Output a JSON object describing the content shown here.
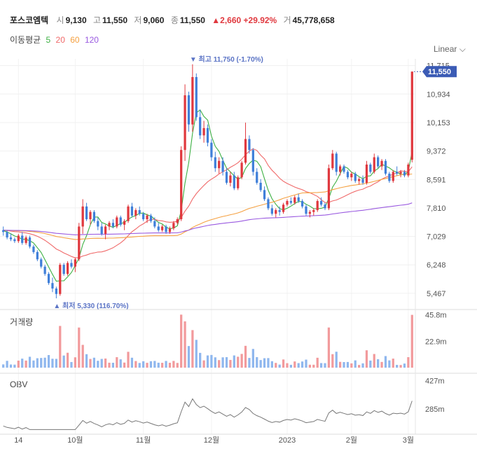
{
  "header": {
    "name": "포스코엠텍",
    "open_label": "시",
    "open": "9,130",
    "high_label": "고",
    "high": "11,550",
    "low_label": "저",
    "low": "9,060",
    "close_label": "종",
    "close": "11,550",
    "change": "▲2,660",
    "change_pct": "+29.92%",
    "volume_label": "거",
    "volume": "45,778,658"
  },
  "ma_legend": {
    "label": "이동평균",
    "items": [
      {
        "label": "5",
        "color": "#3cb043"
      },
      {
        "label": "20",
        "color": "#f06a6a"
      },
      {
        "label": "60",
        "color": "#f5a040"
      },
      {
        "label": "120",
        "color": "#9a5ae0"
      }
    ]
  },
  "scale_toggle": "Linear",
  "volume_title": "거래량",
  "obv_title": "OBV",
  "colors": {
    "up": "#e0383e",
    "down": "#3f7fd9",
    "current": "#3b5bb5"
  },
  "chart_data": [
    {
      "type": "candlestick",
      "price_ticks": [
        "11,715",
        "10,934",
        "10,153",
        "9,372",
        "8,591",
        "7,810",
        "7,029",
        "6,248",
        "5,467"
      ],
      "ylim": [
        5100,
        11900
      ],
      "current_price": "11,550",
      "annotations": {
        "high": "최고 11,750 (-1.70%)",
        "low": "최저 5,330 (116.70%)"
      },
      "x_labels": [
        "14",
        "10월",
        "11월",
        "12월",
        "2023",
        "2월",
        "3월"
      ],
      "candles": [
        [
          7200,
          7300,
          7050,
          7150
        ],
        [
          7150,
          7200,
          6950,
          7000
        ],
        [
          7000,
          7100,
          6900,
          6950
        ],
        [
          6950,
          7000,
          6850,
          6900
        ],
        [
          6900,
          7100,
          6850,
          7050
        ],
        [
          7050,
          7150,
          6800,
          6850
        ],
        [
          6850,
          7050,
          6800,
          7000
        ],
        [
          7000,
          7050,
          6700,
          6750
        ],
        [
          6750,
          6800,
          6550,
          6600
        ],
        [
          6600,
          6650,
          6350,
          6400
        ],
        [
          6400,
          6450,
          6150,
          6200
        ],
        [
          6200,
          6250,
          5950,
          6000
        ],
        [
          6000,
          6050,
          5700,
          5750
        ],
        [
          5750,
          5900,
          5500,
          5600
        ],
        [
          5600,
          5650,
          5330,
          5450
        ],
        [
          5450,
          6300,
          5400,
          6250
        ],
        [
          6250,
          6300,
          5950,
          6000
        ],
        [
          6000,
          6350,
          5950,
          6300
        ],
        [
          6300,
          6400,
          6150,
          6200
        ],
        [
          6200,
          6450,
          6050,
          6400
        ],
        [
          6400,
          7400,
          6350,
          7300
        ],
        [
          7300,
          8050,
          7100,
          7850
        ],
        [
          7850,
          7950,
          7450,
          7500
        ],
        [
          7500,
          7750,
          7350,
          7700
        ],
        [
          7700,
          7750,
          7400,
          7450
        ],
        [
          7450,
          7550,
          7200,
          7300
        ],
        [
          7300,
          7400,
          7050,
          7100
        ],
        [
          7100,
          7350,
          6950,
          7300
        ],
        [
          7300,
          7450,
          7200,
          7400
        ],
        [
          7400,
          7500,
          7250,
          7300
        ],
        [
          7300,
          7600,
          7250,
          7550
        ],
        [
          7550,
          7600,
          7300,
          7350
        ],
        [
          7350,
          7500,
          7200,
          7450
        ],
        [
          7450,
          7900,
          7400,
          7850
        ],
        [
          7850,
          7950,
          7550,
          7600
        ],
        [
          7600,
          7800,
          7500,
          7750
        ],
        [
          7750,
          7850,
          7600,
          7650
        ],
        [
          7650,
          7700,
          7450,
          7500
        ],
        [
          7500,
          7650,
          7400,
          7600
        ],
        [
          7600,
          7650,
          7400,
          7450
        ],
        [
          7450,
          7550,
          7250,
          7300
        ],
        [
          7300,
          7400,
          7150,
          7200
        ],
        [
          7200,
          7350,
          7150,
          7300
        ],
        [
          7300,
          7350,
          7100,
          7150
        ],
        [
          7150,
          7300,
          7100,
          7250
        ],
        [
          7250,
          7450,
          7200,
          7400
        ],
        [
          7400,
          7550,
          7350,
          7500
        ],
        [
          7500,
          9500,
          7450,
          9400
        ],
        [
          9400,
          11200,
          9100,
          10900
        ],
        [
          10900,
          11000,
          9900,
          10100
        ],
        [
          10100,
          11750,
          9900,
          11400
        ],
        [
          11400,
          11500,
          10200,
          10300
        ],
        [
          10300,
          10500,
          9700,
          9800
        ],
        [
          9800,
          10200,
          9600,
          10000
        ],
        [
          10000,
          10100,
          9500,
          9600
        ],
        [
          9600,
          9700,
          9100,
          9200
        ],
        [
          9200,
          9350,
          8800,
          8900
        ],
        [
          8900,
          9200,
          8750,
          9100
        ],
        [
          9100,
          9200,
          8700,
          8800
        ],
        [
          8800,
          8900,
          8450,
          8500
        ],
        [
          8500,
          8800,
          8400,
          8700
        ],
        [
          8700,
          8800,
          8300,
          8350
        ],
        [
          8350,
          8700,
          8300,
          8650
        ],
        [
          8650,
          9100,
          8600,
          9050
        ],
        [
          9050,
          10150,
          9000,
          9700
        ],
        [
          9700,
          9800,
          9300,
          9400
        ],
        [
          9400,
          9450,
          8700,
          8800
        ],
        [
          8800,
          8900,
          8450,
          8500
        ],
        [
          8500,
          8600,
          8250,
          8300
        ],
        [
          8300,
          8400,
          8000,
          8050
        ],
        [
          8050,
          8100,
          7750,
          7800
        ],
        [
          7800,
          7900,
          7600,
          7650
        ],
        [
          7650,
          7800,
          7550,
          7750
        ],
        [
          7750,
          7850,
          7600,
          7700
        ],
        [
          7700,
          7950,
          7650,
          7900
        ],
        [
          7900,
          8050,
          7850,
          8000
        ],
        [
          8000,
          8100,
          7900,
          7950
        ],
        [
          7950,
          8150,
          7900,
          8100
        ],
        [
          8100,
          8200,
          7950,
          8000
        ],
        [
          8000,
          8050,
          7800,
          7850
        ],
        [
          7850,
          7900,
          7600,
          7650
        ],
        [
          7650,
          7750,
          7550,
          7700
        ],
        [
          7700,
          7800,
          7600,
          7750
        ],
        [
          7750,
          8050,
          7700,
          8000
        ],
        [
          8000,
          8100,
          7850,
          7900
        ],
        [
          7900,
          7950,
          7750,
          7800
        ],
        [
          7800,
          9000,
          7750,
          8900
        ],
        [
          8900,
          9400,
          8850,
          9300
        ],
        [
          9300,
          9350,
          8700,
          8800
        ],
        [
          8800,
          9000,
          8700,
          8950
        ],
        [
          8950,
          9000,
          8750,
          8800
        ],
        [
          8800,
          8850,
          8600,
          8650
        ],
        [
          8650,
          8800,
          8550,
          8750
        ],
        [
          8750,
          8800,
          8500,
          8550
        ],
        [
          8550,
          8650,
          8450,
          8600
        ],
        [
          8600,
          8700,
          8450,
          8500
        ],
        [
          8500,
          9100,
          8450,
          9000
        ],
        [
          9000,
          9050,
          8750,
          8800
        ],
        [
          8800,
          9300,
          8750,
          9200
        ],
        [
          9200,
          9250,
          8900,
          8950
        ],
        [
          8950,
          9150,
          8850,
          9100
        ],
        [
          9100,
          9150,
          8700,
          8750
        ],
        [
          8750,
          8800,
          8500,
          8550
        ],
        [
          8550,
          8850,
          8500,
          8800
        ],
        [
          8800,
          8950,
          8700,
          8750
        ],
        [
          8750,
          8850,
          8650,
          8800
        ],
        [
          8800,
          8850,
          8650,
          8700
        ],
        [
          8700,
          9050,
          8650,
          9000
        ],
        [
          9130,
          11550,
          9060,
          11550
        ]
      ]
    },
    {
      "type": "bar",
      "title": "거래량",
      "tick_labels": [
        "45.8m",
        "22.9m"
      ],
      "ylim": [
        0,
        48
      ]
    },
    {
      "type": "line",
      "title": "OBV",
      "tick_labels": [
        "427m",
        "285m"
      ],
      "ylim": [
        180,
        450
      ]
    }
  ]
}
